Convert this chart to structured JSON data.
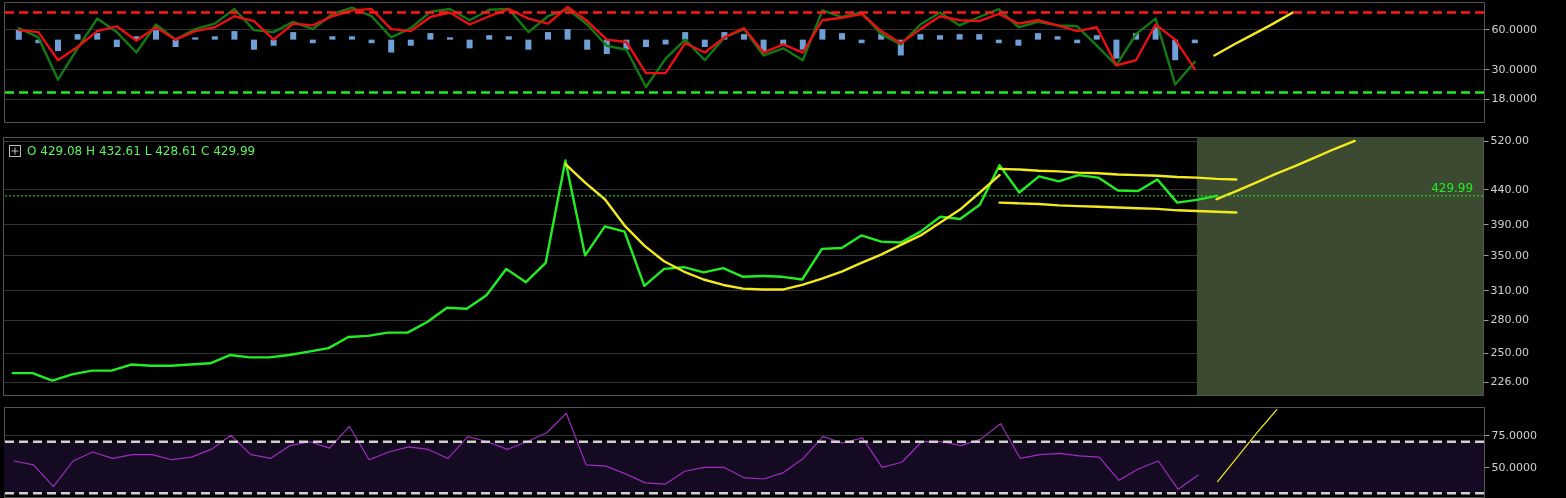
{
  "chart_data": [
    {
      "type": "line",
      "log": "y",
      "grid": "y",
      "tick_labels": "y",
      "ylim": [
        12,
        96
      ],
      "yticks": [
        {
          "value": 18,
          "label": "18.0000"
        },
        {
          "value": 30,
          "label": "30.0000"
        },
        {
          "value": 60,
          "label": "60.0000"
        }
      ],
      "categories": [
        null,
        null,
        null,
        null,
        null,
        null,
        null,
        null,
        null,
        null,
        null,
        null,
        null,
        null,
        null,
        null,
        null,
        null,
        null,
        null,
        null,
        null,
        null,
        null,
        null,
        null,
        null,
        null,
        null,
        null,
        null,
        null,
        null,
        null,
        null,
        null,
        null,
        null,
        null,
        null,
        null,
        null,
        null,
        null,
        null,
        null,
        null,
        null,
        null,
        null,
        null,
        null,
        null,
        null,
        null,
        null,
        null,
        null,
        null,
        null,
        null,
        null,
        null,
        null,
        null,
        null,
        null,
        null,
        null,
        null,
        null,
        null,
        null,
        null,
        null
      ],
      "ref_lines": [
        {
          "axis": "y",
          "value": 80,
          "color": "#ff1a1a",
          "line_style": "dashed"
        },
        {
          "axis": "y",
          "value": 20,
          "color": "#22ee22",
          "line_style": "dashed"
        }
      ],
      "series": [
        {
          "type": "bar",
          "color": "#6e9fd6",
          "base": [
            50,
            50,
            50,
            50,
            50,
            50,
            50,
            50,
            50,
            50,
            50,
            50,
            50,
            50,
            50,
            50,
            50,
            50,
            50,
            50,
            50,
            50,
            50,
            50,
            50,
            50,
            50,
            50,
            50,
            50,
            50,
            50,
            50,
            50,
            50,
            50,
            50,
            50,
            50,
            50,
            50,
            50,
            50,
            50,
            50,
            50,
            50,
            50,
            50,
            50,
            50,
            50,
            50,
            50,
            50,
            50,
            50,
            50,
            50,
            50,
            50,
            null,
            null,
            null,
            null,
            null,
            null,
            null,
            null,
            null,
            null,
            null,
            null,
            null,
            null
          ],
          "values": [
            9,
            -3,
            -9,
            5,
            6,
            -6,
            3,
            9,
            -6,
            2,
            3,
            8,
            -8,
            -5,
            7,
            -3,
            3,
            3,
            -3,
            -10,
            -5,
            6,
            2,
            -7,
            4,
            3,
            -8,
            7,
            10,
            -8,
            -11,
            -8,
            -6,
            -4,
            7,
            -6,
            7,
            5,
            -10,
            -4,
            -8,
            10,
            6,
            -3,
            5,
            -12,
            5,
            4,
            5,
            5,
            -3,
            -5,
            6,
            3,
            -3,
            4,
            -14,
            6,
            12,
            -15,
            -3,
            null,
            null,
            null,
            null,
            null,
            null,
            null,
            null,
            null,
            null,
            null,
            null,
            null,
            null
          ]
        },
        {
          "color": "#137a13",
          "values": [
            61,
            52,
            25,
            43,
            72,
            57,
            40,
            65,
            50,
            60,
            66,
            85,
            59,
            57,
            68,
            60,
            78,
            87,
            75,
            52,
            61,
            81,
            85,
            70,
            84,
            85,
            57,
            75,
            85,
            65,
            45,
            42,
            22,
            36,
            50,
            35,
            52,
            60,
            38,
            43,
            35,
            83,
            74,
            80,
            55,
            46,
            65,
            80,
            64,
            74,
            85,
            62,
            68,
            64,
            63,
            45,
            32,
            55,
            72,
            23,
            34,
            null,
            null,
            null,
            null,
            null,
            null,
            null,
            null,
            null,
            null,
            null,
            null,
            null,
            null
          ]
        },
        {
          "color": "#e81010",
          "values": [
            59,
            57,
            35,
            44,
            58,
            63,
            49,
            62,
            50,
            58,
            62,
            75,
            69,
            50,
            66,
            64,
            75,
            83,
            85,
            60,
            58,
            74,
            80,
            65,
            75,
            85,
            72,
            66,
            88,
            69,
            50,
            48,
            28,
            28,
            47,
            40,
            52,
            61,
            40,
            46,
            40,
            70,
            73,
            78,
            58,
            47,
            60,
            75,
            70,
            69,
            78,
            66,
            70,
            64,
            58,
            62,
            32,
            35,
            65,
            50,
            30,
            null,
            null,
            null,
            null,
            null,
            null,
            null,
            null,
            null,
            null,
            null,
            null,
            null,
            null
          ]
        },
        {
          "color": "#f2ea1e",
          "values": [
            null,
            null,
            null,
            null,
            null,
            null,
            null,
            null,
            null,
            null,
            null,
            null,
            null,
            null,
            null,
            null,
            null,
            null,
            null,
            null,
            null,
            null,
            null,
            null,
            null,
            null,
            null,
            null,
            null,
            null,
            null,
            null,
            null,
            null,
            null,
            null,
            null,
            null,
            null,
            null,
            null,
            null,
            null,
            null,
            null,
            null,
            null,
            null,
            null,
            null,
            null,
            null,
            null,
            null,
            null,
            null,
            null,
            null,
            null,
            null,
            null,
            38,
            46,
            55,
            66,
            80,
            null,
            null,
            null,
            null,
            null,
            null,
            null,
            null,
            null
          ]
        }
      ]
    },
    {
      "type": "line",
      "log": "y",
      "grid": "y",
      "tick_labels": "y",
      "ylim": [
        216,
        527
      ],
      "yticks": [
        {
          "value": 226,
          "label": "226.00"
        },
        {
          "value": 250,
          "label": "250.00"
        },
        {
          "value": 280,
          "label": "280.00"
        },
        {
          "value": 310,
          "label": "310.00"
        },
        {
          "value": 350,
          "label": "350.00"
        },
        {
          "value": 390,
          "label": "390.00"
        },
        {
          "value": 440,
          "label": "440.00"
        },
        {
          "value": 520,
          "label": "520.00"
        }
      ],
      "categories": [
        null,
        null,
        null,
        null,
        null,
        null,
        null,
        null,
        null,
        null,
        null,
        null,
        null,
        null,
        null,
        null,
        null,
        null,
        null,
        null,
        null,
        null,
        null,
        null,
        null,
        null,
        null,
        null,
        null,
        null,
        null,
        null,
        null,
        null,
        null,
        null,
        null,
        null,
        null,
        null,
        null,
        null,
        null,
        null,
        null,
        null,
        null,
        null,
        null,
        null,
        null,
        null,
        null,
        null,
        null,
        null,
        null,
        null,
        null,
        null,
        null,
        null,
        null,
        null,
        null,
        null,
        null,
        null,
        null,
        null,
        null,
        null,
        null,
        null,
        null
      ],
      "annotations": [
        "O 429.08 H 432.61 L 428.61 C 429.99"
      ],
      "ref_lines": [
        {
          "axis": "y",
          "value": 429.99,
          "label": "429.99",
          "color": "#22ee22",
          "line_style": "dotted"
        }
      ],
      "series": [
        {
          "color": "#22ee22",
          "values": [
            233,
            233,
            227,
            232,
            235,
            235,
            240,
            239,
            239,
            240,
            241,
            248,
            246,
            246,
            248,
            251,
            254,
            264,
            265,
            268,
            268,
            278,
            292,
            291,
            305,
            334,
            319,
            341,
            486,
            350,
            387,
            380,
            315,
            334,
            336,
            330,
            335,
            325,
            326,
            325,
            322,
            358,
            359,
            375,
            367,
            366,
            380,
            400,
            397,
            417,
            478,
            435,
            460,
            452,
            462,
            458,
            438,
            437,
            455,
            420,
            424,
            430,
            null,
            null,
            null,
            null,
            null,
            null,
            null,
            null,
            null,
            null,
            null,
            null,
            null
          ]
        },
        {
          "color": "#f2ea1e",
          "values": [
            null,
            null,
            null,
            null,
            null,
            null,
            null,
            null,
            null,
            null,
            null,
            null,
            null,
            null,
            null,
            null,
            null,
            null,
            null,
            null,
            null,
            null,
            null,
            null,
            null,
            null,
            null,
            null,
            480,
            450,
            425,
            388,
            362,
            343,
            331,
            322,
            316,
            312,
            311,
            311,
            316,
            323,
            331,
            341,
            351,
            363,
            375,
            392,
            410,
            435,
            462,
            null,
            null,
            null,
            null,
            null,
            null,
            null,
            null,
            null,
            null,
            null,
            null,
            null,
            null,
            null,
            null,
            null,
            null,
            null,
            null,
            null,
            null,
            null,
            null
          ]
        },
        {
          "color": "#f2ea1e",
          "values": [
            null,
            null,
            null,
            null,
            null,
            null,
            null,
            null,
            null,
            null,
            null,
            null,
            null,
            null,
            null,
            null,
            null,
            null,
            null,
            null,
            null,
            null,
            null,
            null,
            null,
            null,
            null,
            null,
            null,
            null,
            null,
            null,
            null,
            null,
            null,
            null,
            null,
            null,
            null,
            null,
            null,
            null,
            null,
            null,
            null,
            null,
            null,
            null,
            null,
            null,
            472,
            471,
            469,
            468,
            466,
            465,
            463,
            462,
            461,
            459,
            458,
            456,
            455,
            null,
            null,
            null,
            null,
            null,
            null,
            null,
            null,
            null,
            null,
            null,
            null
          ]
        },
        {
          "color": "#f2ea1e",
          "values": [
            null,
            null,
            null,
            null,
            null,
            null,
            null,
            null,
            null,
            null,
            null,
            null,
            null,
            null,
            null,
            null,
            null,
            null,
            null,
            null,
            null,
            null,
            null,
            null,
            null,
            null,
            null,
            null,
            null,
            null,
            null,
            null,
            null,
            null,
            null,
            null,
            null,
            null,
            null,
            null,
            null,
            null,
            null,
            null,
            null,
            null,
            null,
            null,
            null,
            null,
            420,
            419,
            418,
            416,
            415,
            414,
            413,
            412,
            411,
            409,
            408,
            407,
            406,
            null,
            null,
            null,
            null,
            null,
            null,
            null,
            null,
            null,
            null,
            null,
            null
          ]
        },
        {
          "color": "#f2ea1e",
          "values": [
            null,
            null,
            null,
            null,
            null,
            null,
            null,
            null,
            null,
            null,
            null,
            null,
            null,
            null,
            null,
            null,
            null,
            null,
            null,
            null,
            null,
            null,
            null,
            null,
            null,
            null,
            null,
            null,
            null,
            null,
            null,
            null,
            null,
            null,
            null,
            null,
            null,
            null,
            null,
            null,
            null,
            null,
            null,
            null,
            null,
            null,
            null,
            null,
            null,
            null,
            null,
            null,
            null,
            null,
            null,
            null,
            null,
            null,
            null,
            null,
            null,
            425,
            437,
            450,
            464,
            477,
            491,
            506,
            520,
            null,
            null,
            null,
            null,
            null,
            null
          ]
        }
      ]
    },
    {
      "type": "line",
      "grid": "y",
      "tick_labels": "y",
      "ylim": [
        27,
        97
      ],
      "yticks": [
        {
          "value": 50,
          "label": "50.0000"
        },
        {
          "value": 75,
          "label": "75.0000"
        }
      ],
      "categories": [
        null,
        null,
        null,
        null,
        null,
        null,
        null,
        null,
        null,
        null,
        null,
        null,
        null,
        null,
        null,
        null,
        null,
        null,
        null,
        null,
        null,
        null,
        null,
        null,
        null,
        null,
        null,
        null,
        null,
        null,
        null,
        null,
        null,
        null,
        null,
        null,
        null,
        null,
        null,
        null,
        null,
        null,
        null,
        null,
        null,
        null,
        null,
        null,
        null,
        null,
        null,
        null,
        null,
        null,
        null,
        null,
        null,
        null,
        null,
        null,
        null,
        null,
        null,
        null,
        null,
        null,
        null,
        null,
        null,
        null,
        null,
        null,
        null,
        null,
        null
      ],
      "bands": [
        {
          "axis": "y",
          "from": 30,
          "to": 70,
          "color": "#140a22"
        }
      ],
      "ref_lines": [
        {
          "axis": "y",
          "value": 70,
          "color": "#d0d0d0",
          "line_style": "dashed"
        },
        {
          "axis": "y",
          "value": 30,
          "color": "#d0d0d0",
          "line_style": "dashed"
        }
      ],
      "series": [
        {
          "color": "#a02cc0",
          "values": [
            55,
            52,
            35,
            55,
            62,
            57,
            60,
            60,
            56,
            58,
            64,
            75,
            60,
            57,
            67,
            70,
            65,
            82,
            56,
            62,
            66,
            64,
            57,
            74,
            70,
            64,
            70,
            77,
            92,
            52,
            51,
            45,
            38,
            37,
            47,
            50,
            50,
            42,
            41,
            46,
            57,
            74,
            69,
            73,
            50,
            54,
            70,
            70,
            67,
            72,
            84,
            57,
            60,
            61,
            59,
            58,
            40,
            49,
            55,
            33,
            44,
            null,
            null,
            null,
            null,
            null,
            null,
            null,
            null,
            null,
            null,
            null,
            null,
            null,
            null
          ]
        },
        {
          "color": "#f2ea1e",
          "values": [
            null,
            null,
            null,
            null,
            null,
            null,
            null,
            null,
            null,
            null,
            null,
            null,
            null,
            null,
            null,
            null,
            null,
            null,
            null,
            null,
            null,
            null,
            null,
            null,
            null,
            null,
            null,
            null,
            null,
            null,
            null,
            null,
            null,
            null,
            null,
            null,
            null,
            null,
            null,
            null,
            null,
            null,
            null,
            null,
            null,
            null,
            null,
            null,
            null,
            null,
            null,
            null,
            null,
            null,
            null,
            null,
            null,
            null,
            null,
            null,
            null,
            39,
            58,
            77,
            95,
            null,
            null,
            null,
            null,
            null,
            null,
            null,
            null,
            null,
            null
          ]
        }
      ]
    }
  ]
}
